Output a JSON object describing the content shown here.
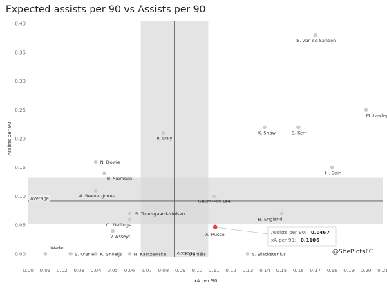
{
  "chart_data": {
    "type": "scatter",
    "title": "Expected assists per 90 vs Assists per 90",
    "xlabel": "xA per 90",
    "ylabel": "Assists per 90",
    "xlim": [
      0.0,
      0.21
    ],
    "ylim": [
      -0.005,
      0.405
    ],
    "xticks": [
      "0.00",
      "0.01",
      "0.02",
      "0.03",
      "0.04",
      "0.05",
      "0.06",
      "0.07",
      "0.08",
      "0.09",
      "0.10",
      "0.11",
      "0.12",
      "0.13",
      "0.14",
      "0.15",
      "0.16",
      "0.17",
      "0.18",
      "0.19",
      "0.20",
      "0.21"
    ],
    "yticks": [
      "0.00",
      "0.05",
      "0.10",
      "0.15",
      "0.20",
      "0.25",
      "0.30",
      "0.35",
      "0.40"
    ],
    "grid": false,
    "point_color": "#cccccc",
    "highlight_color": "#e8413f",
    "band_color": "#d9d9d9",
    "points": [
      {
        "name": "S. van de Sanden",
        "x": 0.17,
        "y": 0.38
      },
      {
        "name": "M. Lawley",
        "x": 0.2,
        "y": 0.25
      },
      {
        "name": "K. Shaw",
        "x": 0.14,
        "y": 0.22
      },
      {
        "name": "S. Kerr",
        "x": 0.16,
        "y": 0.22
      },
      {
        "name": "R. Daly",
        "x": 0.08,
        "y": 0.21
      },
      {
        "name": "N. Dowie",
        "x": 0.04,
        "y": 0.16
      },
      {
        "name": "R. Siemsen",
        "x": 0.045,
        "y": 0.14
      },
      {
        "name": "H. Cain",
        "x": 0.18,
        "y": 0.15
      },
      {
        "name": "A. Beever-Jones",
        "x": 0.04,
        "y": 0.11
      },
      {
        "name": "Geum-Min Lee",
        "x": 0.11,
        "y": 0.1
      },
      {
        "name": "S. Troelsgaard-Nielsen",
        "x": 0.06,
        "y": 0.07
      },
      {
        "name": "B. England",
        "x": 0.15,
        "y": 0.07
      },
      {
        "name": "C. Wellings",
        "x": 0.06,
        "y": 0.06
      },
      {
        "name": "V. Asseyi",
        "x": 0.05,
        "y": 0.04
      },
      {
        "name": "A. Russo",
        "x": 0.1106,
        "y": 0.0467,
        "highlight": true
      },
      {
        "name": "L. Wade",
        "x": 0.01,
        "y": 0.0
      },
      {
        "name": "S. O'Brien",
        "x": 0.025,
        "y": 0.0
      },
      {
        "name": "K. Snoeijs",
        "x": 0.04,
        "y": 0.0
      },
      {
        "name": "N. Karczewska",
        "x": 0.06,
        "y": 0.0
      },
      {
        "name": "Y. Daniëls",
        "x": 0.09,
        "y": 0.0
      },
      {
        "name": "S. Blackstenius",
        "x": 0.13,
        "y": 0.0
      }
    ],
    "average": {
      "label": "Average",
      "x": 0.0866,
      "y": 0.0922
    },
    "x_band": [
      0.0666,
      0.1066
    ],
    "y_band": [
      0.0522,
      0.1322
    ],
    "tooltip": {
      "line1_label": "Assists per 90:",
      "line1_value": "0.0467",
      "line2_label": "xA per 90:",
      "line2_value": "0.1106"
    },
    "credit": "@ShePlotsFC"
  }
}
